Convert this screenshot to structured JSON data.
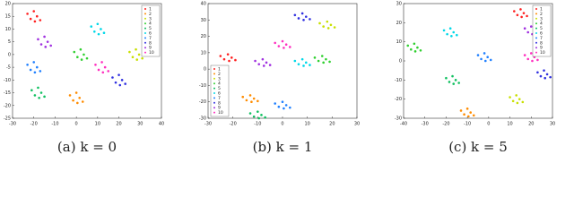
{
  "chart_data": [
    {
      "type": "scatter",
      "caption": "(a) k = 0",
      "xlim": [
        -30,
        40
      ],
      "ylim": [
        -25,
        20
      ],
      "xticks": [
        -30,
        -20,
        -10,
        0,
        10,
        20,
        30,
        40
      ],
      "yticks": [
        -25,
        -20,
        -15,
        -10,
        -5,
        0,
        5,
        10,
        15,
        20
      ],
      "legend_position": "top-right",
      "series": [
        {
          "name": "1",
          "color": "#ff2020",
          "x": [
            -23,
            -21.5,
            -20,
            -18.5,
            -17,
            -19.5
          ],
          "values": [
            16,
            14,
            17,
            15,
            13.5,
            13
          ]
        },
        {
          "name": "2",
          "color": "#ff8c00",
          "x": [
            -3,
            -1.5,
            0,
            1.5,
            3,
            0.5
          ],
          "values": [
            -16,
            -18,
            -15,
            -17,
            -18.5,
            -19
          ]
        },
        {
          "name": "3",
          "color": "#c8e000",
          "x": [
            25,
            26.5,
            28,
            29.5,
            31,
            28.5
          ],
          "values": [
            1,
            -1,
            2,
            0,
            -1.5,
            -2
          ]
        },
        {
          "name": "4",
          "color": "#30d030",
          "x": [
            -1,
            0.5,
            2,
            3.5,
            5,
            2.5
          ],
          "values": [
            1,
            -1,
            2,
            0,
            -1.5,
            -2
          ]
        },
        {
          "name": "5",
          "color": "#10c060",
          "x": [
            -21,
            -19.5,
            -18,
            -16.5,
            -15,
            -17.5
          ],
          "values": [
            -14,
            -16,
            -13,
            -15,
            -16.5,
            -17
          ]
        },
        {
          "name": "6",
          "color": "#00d8e8",
          "x": [
            7,
            8.5,
            10,
            11.5,
            13,
            10.5
          ],
          "values": [
            11,
            9,
            12,
            10,
            8.5,
            8
          ]
        },
        {
          "name": "7",
          "color": "#2080ff",
          "x": [
            -23,
            -21.5,
            -20,
            -18.5,
            -17,
            -19.5
          ],
          "values": [
            -4,
            -6,
            -3,
            -5,
            -6.5,
            -7
          ]
        },
        {
          "name": "8",
          "color": "#3030e0",
          "x": [
            17,
            18.5,
            20,
            21.5,
            23,
            20.5
          ],
          "values": [
            -9,
            -11,
            -8,
            -10,
            -11.5,
            -12
          ]
        },
        {
          "name": "9",
          "color": "#a030e0",
          "x": [
            -18,
            -16.5,
            -15,
            -13.5,
            -12,
            -14.5
          ],
          "values": [
            6,
            4,
            7,
            5,
            3.5,
            3
          ]
        },
        {
          "name": "10",
          "color": "#ff30c0",
          "x": [
            9,
            10.5,
            12,
            13.5,
            15,
            12.5
          ],
          "values": [
            -4,
            -6,
            -3,
            -5,
            -6.5,
            -7
          ]
        }
      ]
    },
    {
      "type": "scatter",
      "caption": "(b) k = 1",
      "xlim": [
        -30,
        30
      ],
      "ylim": [
        -30,
        40
      ],
      "xticks": [
        -30,
        -20,
        -10,
        0,
        10,
        20,
        30
      ],
      "yticks": [
        -30,
        -20,
        -10,
        0,
        10,
        20,
        30,
        40
      ],
      "legend_position": "bottom-left",
      "series": [
        {
          "name": "1",
          "color": "#ff2020",
          "x": [
            -25,
            -23.5,
            -22,
            -20.5,
            -19,
            -21.5
          ],
          "values": [
            8,
            6,
            9,
            7,
            5.5,
            5
          ]
        },
        {
          "name": "2",
          "color": "#ff8c00",
          "x": [
            -16,
            -14.5,
            -13,
            -11.5,
            -10,
            -12.5
          ],
          "values": [
            -17,
            -19,
            -16,
            -18,
            -19.5,
            -20
          ]
        },
        {
          "name": "3",
          "color": "#c8e000",
          "x": [
            15,
            16.5,
            18,
            19.5,
            21,
            18.5
          ],
          "values": [
            28,
            26,
            29,
            27,
            25.5,
            25
          ]
        },
        {
          "name": "4",
          "color": "#30d030",
          "x": [
            13,
            14.5,
            16,
            17.5,
            19,
            16.5
          ],
          "values": [
            7,
            5,
            8,
            6,
            4.5,
            4
          ]
        },
        {
          "name": "5",
          "color": "#10c060",
          "x": [
            -13,
            -11.5,
            -10,
            -8.5,
            -7,
            -9.5
          ],
          "values": [
            -27,
            -29,
            -26,
            -28,
            -29.5,
            -30
          ]
        },
        {
          "name": "6",
          "color": "#00d8e8",
          "x": [
            5,
            6.5,
            8,
            9.5,
            11,
            8.5
          ],
          "values": [
            5,
            3,
            6,
            4,
            2.5,
            2
          ]
        },
        {
          "name": "7",
          "color": "#2080ff",
          "x": [
            -3,
            -1.5,
            0,
            1.5,
            3,
            0.5
          ],
          "values": [
            -21,
            -23,
            -20,
            -22,
            -23.5,
            -24
          ]
        },
        {
          "name": "8",
          "color": "#3030e0",
          "x": [
            5,
            6.5,
            8,
            9.5,
            11,
            8.5
          ],
          "values": [
            33,
            31,
            34,
            32,
            30.5,
            30
          ]
        },
        {
          "name": "9",
          "color": "#a030e0",
          "x": [
            -11,
            -9.5,
            -8,
            -6.5,
            -5,
            -7.5
          ],
          "values": [
            5,
            3,
            6,
            4,
            2.5,
            2
          ]
        },
        {
          "name": "10",
          "color": "#ff30c0",
          "x": [
            -3,
            -1.5,
            0,
            1.5,
            3,
            0.5
          ],
          "values": [
            16,
            14,
            17,
            15,
            13.5,
            13
          ]
        }
      ]
    },
    {
      "type": "scatter",
      "caption": "(c) k = 5",
      "xlim": [
        -40,
        30
      ],
      "ylim": [
        -30,
        30
      ],
      "xticks": [
        -40,
        -30,
        -20,
        -10,
        0,
        10,
        20,
        30
      ],
      "yticks": [
        -30,
        -20,
        -10,
        0,
        10,
        20,
        30
      ],
      "legend_position": "top-right",
      "series": [
        {
          "name": "1",
          "color": "#ff2020",
          "x": [
            12,
            13.5,
            15,
            16.5,
            18,
            15.5
          ],
          "values": [
            26,
            24,
            27,
            25,
            23.5,
            23
          ]
        },
        {
          "name": "2",
          "color": "#ff8c00",
          "x": [
            -13,
            -11.5,
            -10,
            -8.5,
            -7,
            -9.5
          ],
          "values": [
            -26,
            -28,
            -25,
            -27,
            -28.5,
            -29
          ]
        },
        {
          "name": "3",
          "color": "#c8e000",
          "x": [
            10,
            11.5,
            13,
            14.5,
            16,
            13.5
          ],
          "values": [
            -19,
            -21,
            -18,
            -20,
            -21.5,
            -22
          ]
        },
        {
          "name": "4",
          "color": "#30d030",
          "x": [
            -38,
            -36.5,
            -35,
            -33.5,
            -32,
            -34.5
          ],
          "values": [
            8,
            6,
            9,
            7,
            5.5,
            5
          ]
        },
        {
          "name": "5",
          "color": "#10c060",
          "x": [
            -20,
            -18.5,
            -17,
            -15.5,
            -14,
            -16.5
          ],
          "values": [
            -9,
            -11,
            -8,
            -10,
            -11.5,
            -12
          ]
        },
        {
          "name": "6",
          "color": "#00d8e8",
          "x": [
            -21,
            -19.5,
            -18,
            -16.5,
            -15,
            -17.5
          ],
          "values": [
            16,
            14,
            17,
            15,
            13.5,
            13
          ]
        },
        {
          "name": "7",
          "color": "#2080ff",
          "x": [
            -5,
            -3.5,
            -2,
            -0.5,
            1,
            -1.5
          ],
          "values": [
            3,
            1,
            4,
            2,
            0.5,
            0
          ]
        },
        {
          "name": "8",
          "color": "#3030e0",
          "x": [
            23,
            24.5,
            26,
            27.5,
            29,
            26.5
          ],
          "values": [
            -6,
            -8,
            -5,
            -7,
            -8.5,
            -9
          ]
        },
        {
          "name": "9",
          "color": "#a030e0",
          "x": [
            17,
            18.5,
            20,
            21.5,
            23,
            20.5
          ],
          "values": [
            17,
            15,
            18,
            16,
            14.5,
            14
          ]
        },
        {
          "name": "10",
          "color": "#ff30c0",
          "x": [
            17,
            18.5,
            20,
            21.5,
            23,
            20.5
          ],
          "values": [
            3,
            1,
            4,
            2,
            0.5,
            0
          ]
        }
      ]
    }
  ]
}
